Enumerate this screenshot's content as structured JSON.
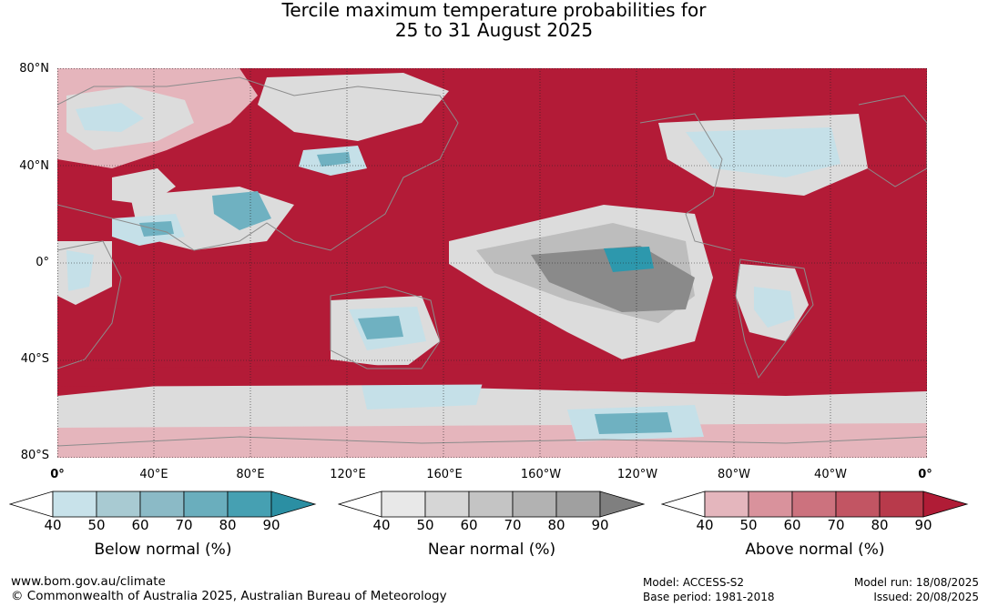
{
  "title_line1": "Tercile maximum temperature probabilities for",
  "title_line2": "25 to 31 August 2025",
  "lat_labels": [
    "80°N",
    "40°N",
    "0°",
    "40°S",
    "80°S"
  ],
  "lon_labels": [
    "0°",
    "40°E",
    "80°E",
    "120°E",
    "160°E",
    "160°W",
    "120°W",
    "80°W",
    "40°W",
    "0°"
  ],
  "colorbars": [
    {
      "title": "Below normal (%)",
      "ticks": [
        "40",
        "50",
        "60",
        "70",
        "80",
        "90"
      ],
      "colors": [
        "#ffffff",
        "#c8e2ea",
        "#a8cad2",
        "#8bbac6",
        "#6aaebd",
        "#46a0b2",
        "#2b8fa3"
      ]
    },
    {
      "title": "Near normal (%)",
      "ticks": [
        "40",
        "50",
        "60",
        "70",
        "80",
        "90"
      ],
      "colors": [
        "#ffffff",
        "#e8e8e8",
        "#d6d6d6",
        "#c4c4c4",
        "#b2b2b2",
        "#a0a0a0",
        "#7f7f7f"
      ]
    },
    {
      "title": "Above normal (%)",
      "ticks": [
        "40",
        "50",
        "60",
        "70",
        "80",
        "90"
      ],
      "colors": [
        "#ffffff",
        "#e4b6bd",
        "#d9929c",
        "#cc727e",
        "#c25563",
        "#b83a4b",
        "#b01c36"
      ]
    }
  ],
  "footer": {
    "url": "www.bom.gov.au/climate",
    "copyright": "© Commonwealth of Australia 2025, Australian Bureau of Meteorology",
    "model": "Model: ACCESS-S2",
    "base_period": "Base period: 1981-2018",
    "model_run": "Model run: 18/08/2025",
    "issued": "Issued: 20/08/2025"
  },
  "map_colors": {
    "above": "#b31b37",
    "above_light": "#d27a86",
    "above_pale": "#e5b5bc",
    "near_light": "#dcdcdc",
    "near_mid": "#bdbdbd",
    "near_dark": "#8a8a8a",
    "below_light": "#c5e0e8",
    "below_mid": "#6fb1c1",
    "below_dark": "#2d98ad",
    "coast": "#8c8c8c"
  }
}
